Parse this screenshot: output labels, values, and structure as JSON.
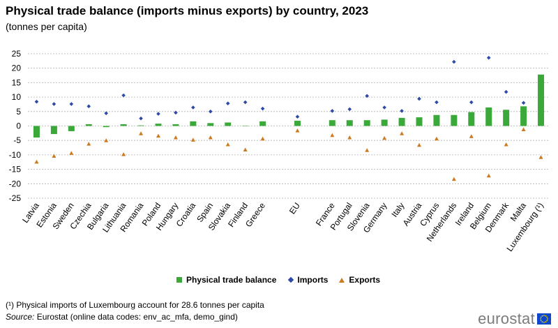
{
  "title": "Physical trade balance (imports minus exports) by country, 2023",
  "subtitle": "(tonnes per capita)",
  "footnote": "(¹) Physical imports of Luxembourg  account for 28.6 tonnes per capita",
  "source_label": "Source:",
  "source_text": " Eurostat (online data codes: env_ac_mfa, demo_gind)",
  "logo_text": "eurostat",
  "colors": {
    "balance": "#3aa93a",
    "imports": "#2e4aa6",
    "exports": "#cc7a1f",
    "grid": "#b0b0b0"
  },
  "chart_data": {
    "type": "bar",
    "categories": [
      "Latvia",
      "Estonia",
      "Sweden",
      "Czechia",
      "Bulgaria",
      "Lithuania",
      "Romania",
      "Poland",
      "Hungary",
      "Croatia",
      "Spain",
      "Slovakia",
      "Finland",
      "Greece",
      "",
      "EU",
      "",
      "France",
      "Portugal",
      "Slovenia",
      "Germany",
      "Italy",
      "Austria",
      "Cyprus",
      "Netherlands",
      "Ireland",
      "Belgium",
      "Denmark",
      "Malta",
      "Luxembourg (¹)"
    ],
    "ylim": [
      -25,
      25
    ],
    "yticks": [
      25,
      20,
      15,
      10,
      5,
      0,
      -5,
      -10,
      -15,
      -20,
      -25
    ],
    "grid": true,
    "legend_position": "bottom",
    "series": [
      {
        "name": "Physical trade balance",
        "kind": "bar",
        "values": [
          -4.0,
          -2.8,
          -1.8,
          0.6,
          -0.4,
          0.6,
          0.2,
          0.8,
          0.6,
          1.6,
          1.0,
          1.2,
          0.0,
          1.6,
          null,
          1.8,
          null,
          2.0,
          2.0,
          2.0,
          2.2,
          2.8,
          3.0,
          3.8,
          3.8,
          4.8,
          6.4,
          5.6,
          6.8,
          17.8
        ]
      },
      {
        "name": "Imports",
        "kind": "diamond",
        "values": [
          8.4,
          7.6,
          7.6,
          6.8,
          4.4,
          10.6,
          2.6,
          4.2,
          4.6,
          6.4,
          5.0,
          7.8,
          8.2,
          6.0,
          null,
          3.2,
          null,
          5.2,
          5.8,
          10.4,
          6.4,
          5.2,
          9.4,
          8.2,
          22.2,
          8.2,
          23.6,
          11.8,
          8.0,
          null
        ]
      },
      {
        "name": "Exports",
        "kind": "triangle",
        "values": [
          -12.4,
          -10.4,
          -9.4,
          -6.2,
          -5.0,
          -9.8,
          -2.6,
          -3.4,
          -4.0,
          -4.8,
          -4.0,
          -6.4,
          -8.2,
          -4.4,
          null,
          -1.6,
          null,
          -3.2,
          -4.0,
          -8.4,
          -4.2,
          -2.6,
          -6.6,
          -4.4,
          -18.4,
          -3.6,
          -17.2,
          -6.4,
          -1.2,
          -10.8
        ]
      }
    ]
  }
}
